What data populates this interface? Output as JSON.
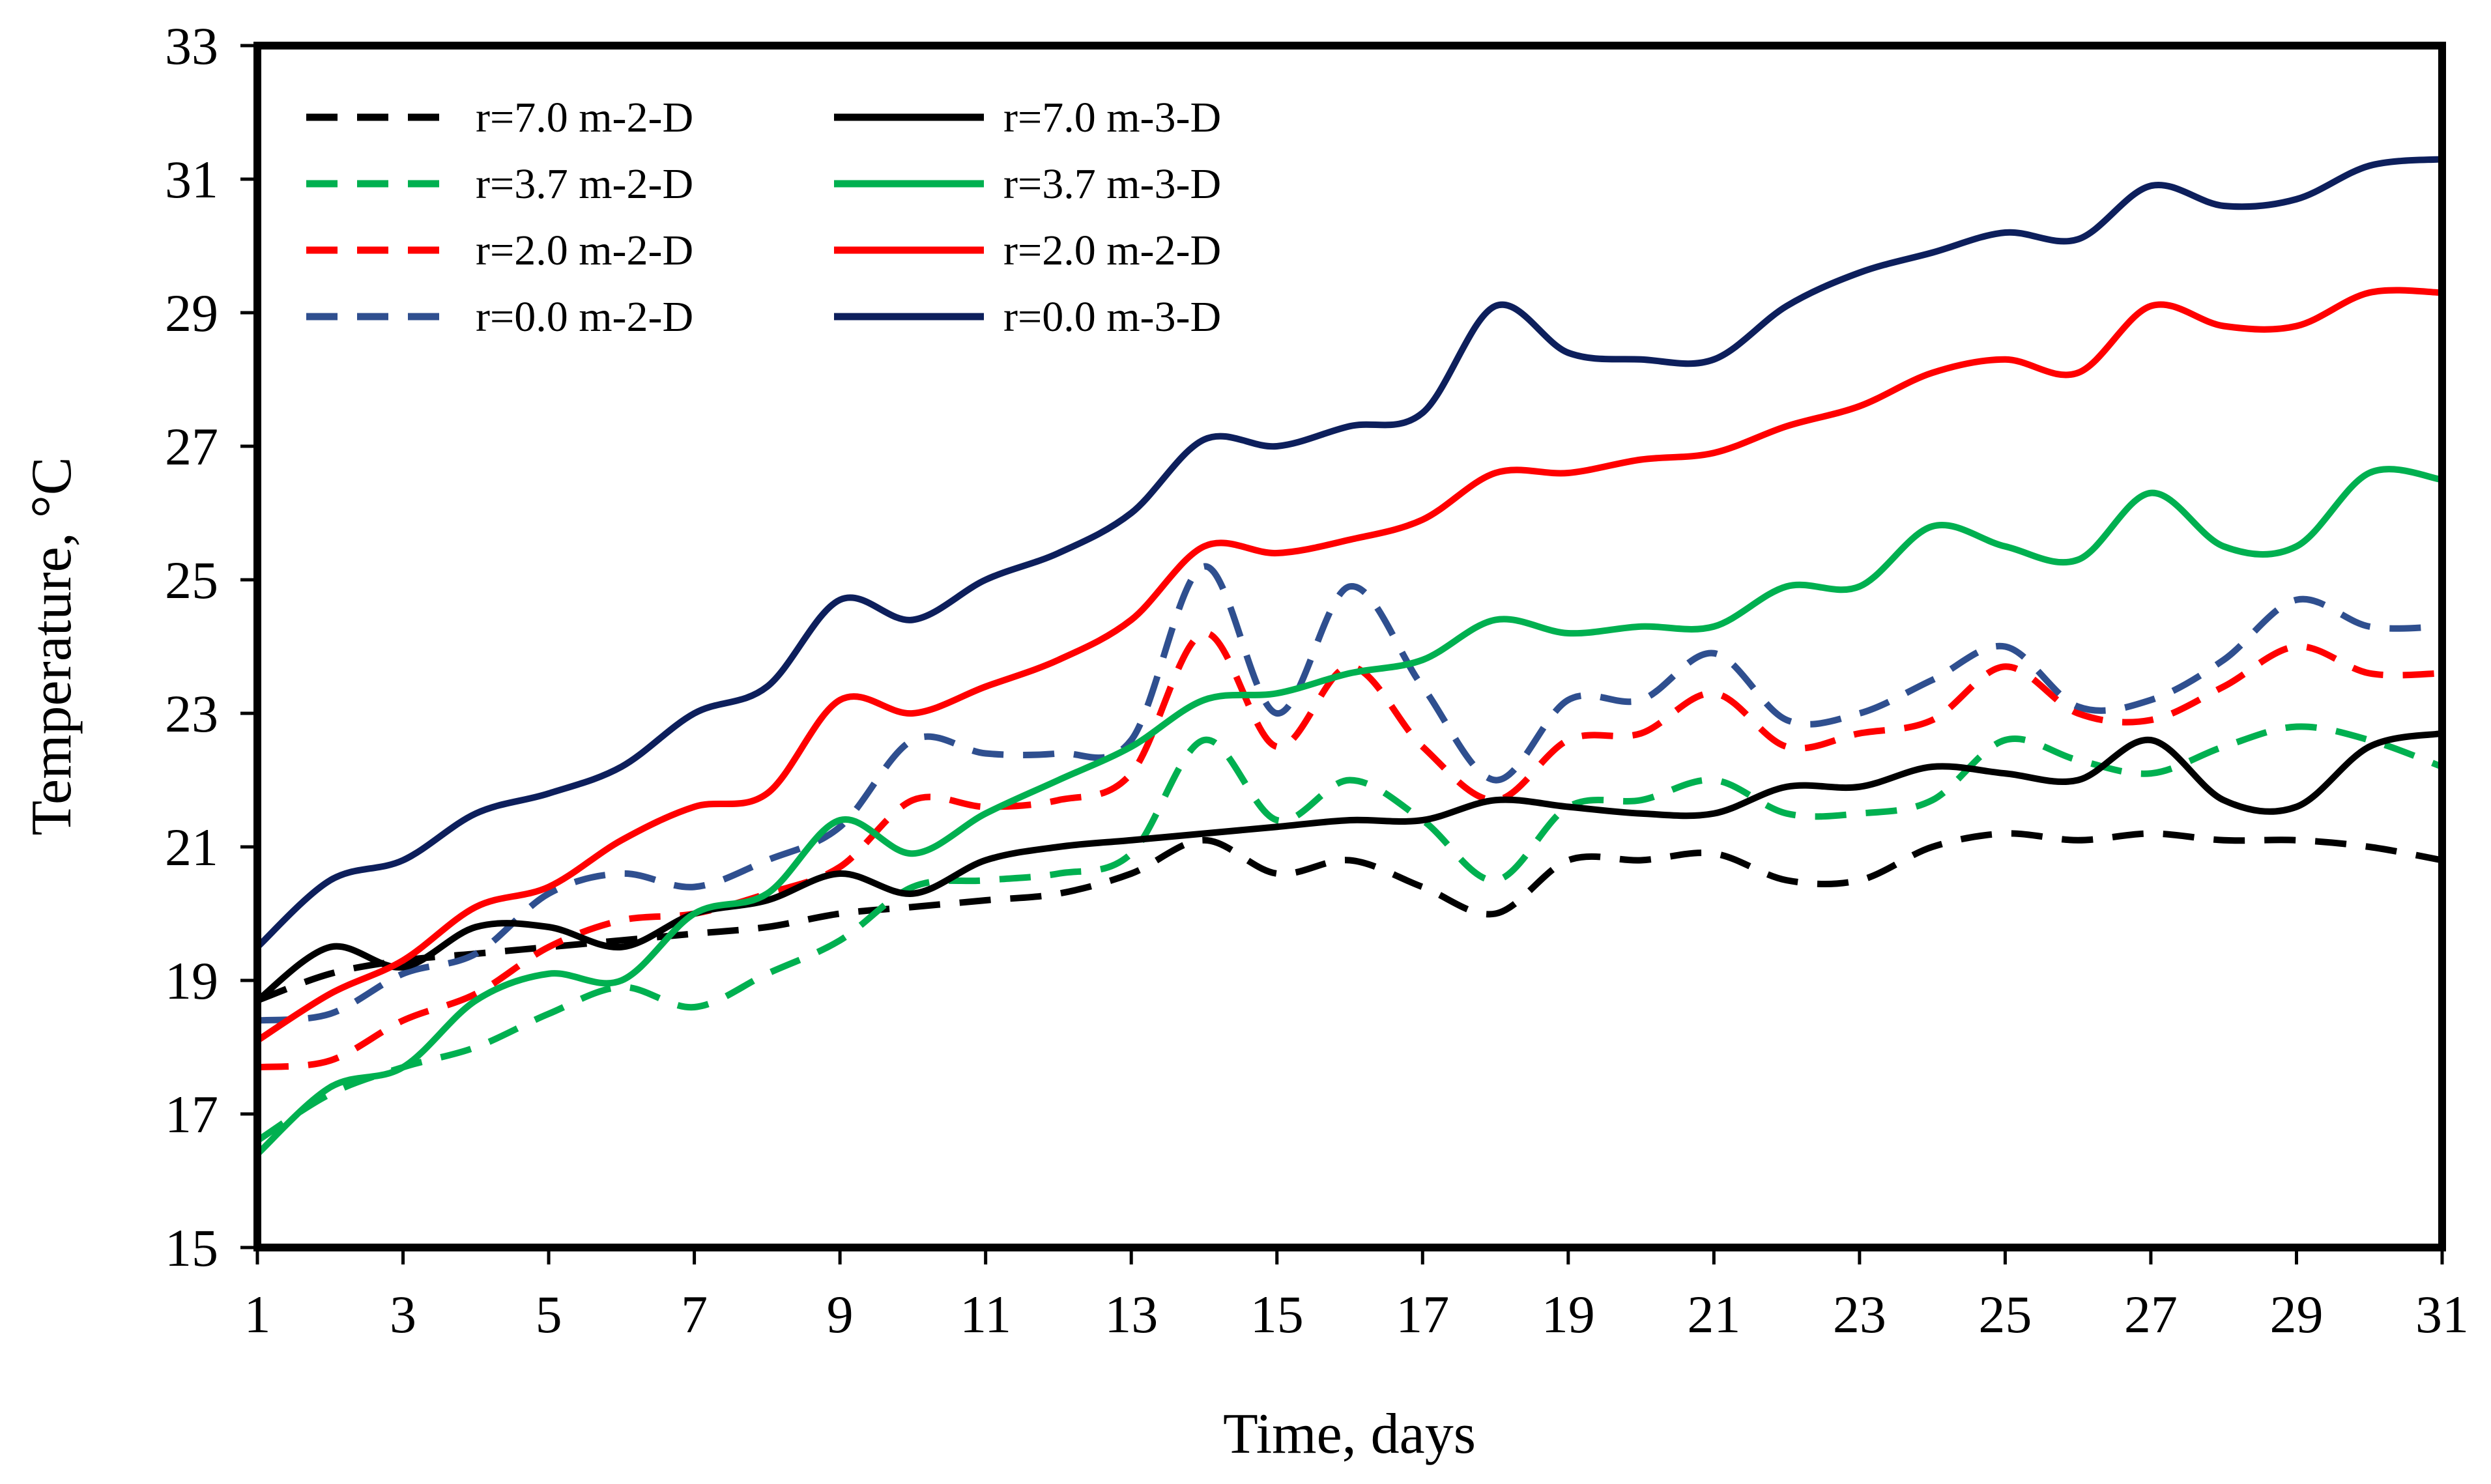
{
  "chart_data": {
    "type": "line",
    "title": "",
    "xlabel": "Time, days",
    "ylabel": "Temperature,  °C",
    "xlim": [
      1,
      31
    ],
    "ylim": [
      15,
      33
    ],
    "xticks": [
      1,
      3,
      5,
      7,
      9,
      11,
      13,
      15,
      17,
      19,
      21,
      23,
      25,
      27,
      29,
      31
    ],
    "yticks": [
      15,
      17,
      19,
      21,
      23,
      25,
      27,
      29,
      31,
      33
    ],
    "grid": false,
    "legend_position": "top-left",
    "x": [
      1,
      2,
      3,
      4,
      5,
      6,
      7,
      8,
      9,
      10,
      11,
      12,
      13,
      14,
      15,
      16,
      17,
      18,
      19,
      20,
      21,
      22,
      23,
      24,
      25,
      26,
      27,
      28,
      29,
      30,
      31
    ],
    "series": [
      {
        "name": "r=7.0 m-2-D",
        "style": "dashed",
        "color": "#000000",
        "values": [
          18.7,
          19.1,
          19.3,
          19.4,
          19.5,
          19.6,
          19.7,
          19.8,
          20.0,
          20.1,
          20.2,
          20.3,
          20.6,
          21.1,
          20.6,
          20.8,
          20.4,
          20.0,
          20.8,
          20.8,
          20.9,
          20.5,
          20.5,
          21.0,
          21.2,
          21.1,
          21.2,
          21.1,
          21.1,
          21.0,
          20.8
        ]
      },
      {
        "name": "r=3.7 m-2-D",
        "style": "dashed",
        "color": "#00B050",
        "values": [
          16.6,
          17.3,
          17.7,
          18.0,
          18.5,
          18.9,
          18.6,
          19.1,
          19.6,
          20.4,
          20.5,
          20.6,
          20.9,
          22.6,
          21.4,
          22.0,
          21.4,
          20.5,
          21.6,
          21.7,
          22.0,
          21.5,
          21.5,
          21.7,
          22.6,
          22.3,
          22.1,
          22.5,
          22.8,
          22.6,
          22.2
        ]
      },
      {
        "name": "r=2.0 m-2-D",
        "style": "dashed",
        "color": "#FF0000",
        "values": [
          17.7,
          17.8,
          18.4,
          18.8,
          19.5,
          19.9,
          20.0,
          20.3,
          20.7,
          21.7,
          21.6,
          21.7,
          22.1,
          24.2,
          22.5,
          23.7,
          22.5,
          21.7,
          22.6,
          22.7,
          23.3,
          22.5,
          22.7,
          22.9,
          23.7,
          23.0,
          22.9,
          23.4,
          24.0,
          23.6,
          23.6
        ]
      },
      {
        "name": "r=0.0 m-2-D",
        "style": "dashed",
        "color": "#2F4F8F",
        "values": [
          18.4,
          18.5,
          19.1,
          19.4,
          20.3,
          20.6,
          20.4,
          20.8,
          21.3,
          22.6,
          22.4,
          22.4,
          22.6,
          25.2,
          23.0,
          24.9,
          23.4,
          22.0,
          23.2,
          23.2,
          23.9,
          22.9,
          23.0,
          23.5,
          24.0,
          23.1,
          23.2,
          23.8,
          24.7,
          24.3,
          24.3
        ]
      },
      {
        "name": "r=7.0 m-3-D",
        "style": "solid",
        "color": "#000000",
        "values": [
          18.7,
          19.5,
          19.2,
          19.8,
          19.8,
          19.5,
          20.0,
          20.2,
          20.6,
          20.3,
          20.8,
          21.0,
          21.1,
          21.2,
          21.3,
          21.4,
          21.4,
          21.7,
          21.6,
          21.5,
          21.5,
          21.9,
          21.9,
          22.2,
          22.1,
          22.0,
          22.6,
          21.7,
          21.6,
          22.5,
          22.7
        ]
      },
      {
        "name": "r=3.7 m-3-D",
        "style": "solid",
        "color": "#00B050",
        "values": [
          16.4,
          17.4,
          17.7,
          18.7,
          19.1,
          19.0,
          20.0,
          20.3,
          21.4,
          20.9,
          21.5,
          22.0,
          22.5,
          23.2,
          23.3,
          23.6,
          23.8,
          24.4,
          24.2,
          24.3,
          24.3,
          24.9,
          24.9,
          25.8,
          25.5,
          25.3,
          26.3,
          25.5,
          25.5,
          26.6,
          26.5
        ]
      },
      {
        "name": "r=2.0 m-2-D",
        "style": "solid",
        "color": "#FF0000",
        "values": [
          18.1,
          18.8,
          19.3,
          20.1,
          20.4,
          21.1,
          21.6,
          21.8,
          23.2,
          23.0,
          23.4,
          23.8,
          24.4,
          25.5,
          25.4,
          25.6,
          25.9,
          26.6,
          26.6,
          26.8,
          26.9,
          27.3,
          27.6,
          28.1,
          28.3,
          28.1,
          29.1,
          28.8,
          28.8,
          29.3,
          29.3
        ]
      },
      {
        "name": "r=0.0 m-3-D",
        "style": "solid",
        "color": "#0D1F5C",
        "values": [
          19.5,
          20.5,
          20.8,
          21.5,
          21.8,
          22.2,
          23.0,
          23.4,
          24.7,
          24.4,
          25.0,
          25.4,
          26.0,
          27.1,
          27.0,
          27.3,
          27.5,
          29.1,
          28.4,
          28.3,
          28.3,
          29.1,
          29.6,
          29.9,
          30.2,
          30.1,
          30.9,
          30.6,
          30.7,
          31.2,
          31.3
        ]
      }
    ]
  }
}
